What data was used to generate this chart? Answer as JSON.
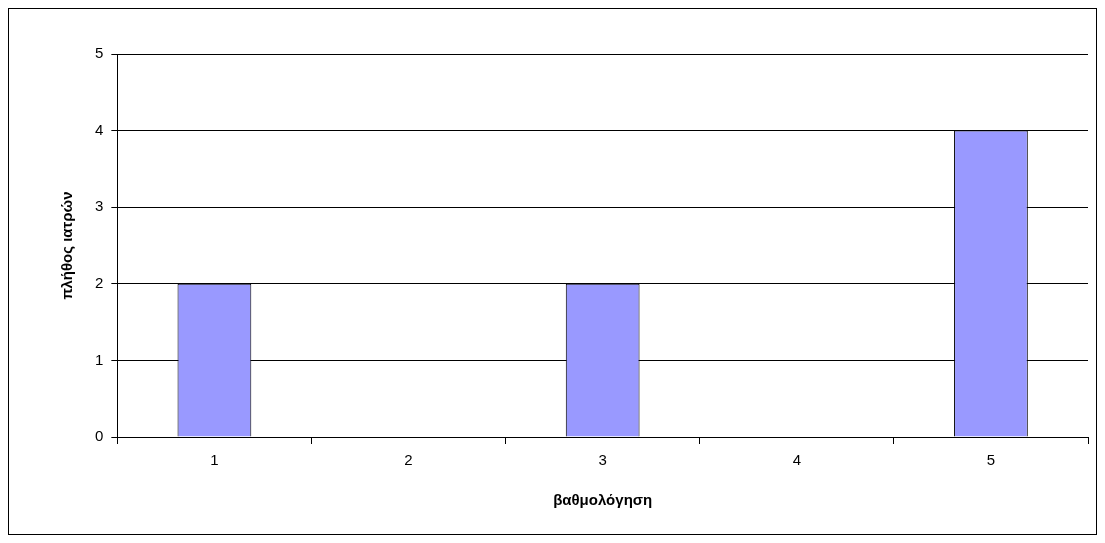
{
  "chart_data": {
    "type": "bar",
    "xlabel": "βαθμολόγηση",
    "ylabel": "πλήθος ιατρών",
    "categories": [
      "1",
      "2",
      "3",
      "4",
      "5"
    ],
    "values": [
      2,
      0,
      2,
      0,
      4
    ],
    "color": "#9999ff",
    "ylim": [
      0,
      5
    ],
    "yticks": [
      0,
      1,
      2,
      3,
      4,
      5
    ],
    "grid": "y",
    "legend": false
  }
}
